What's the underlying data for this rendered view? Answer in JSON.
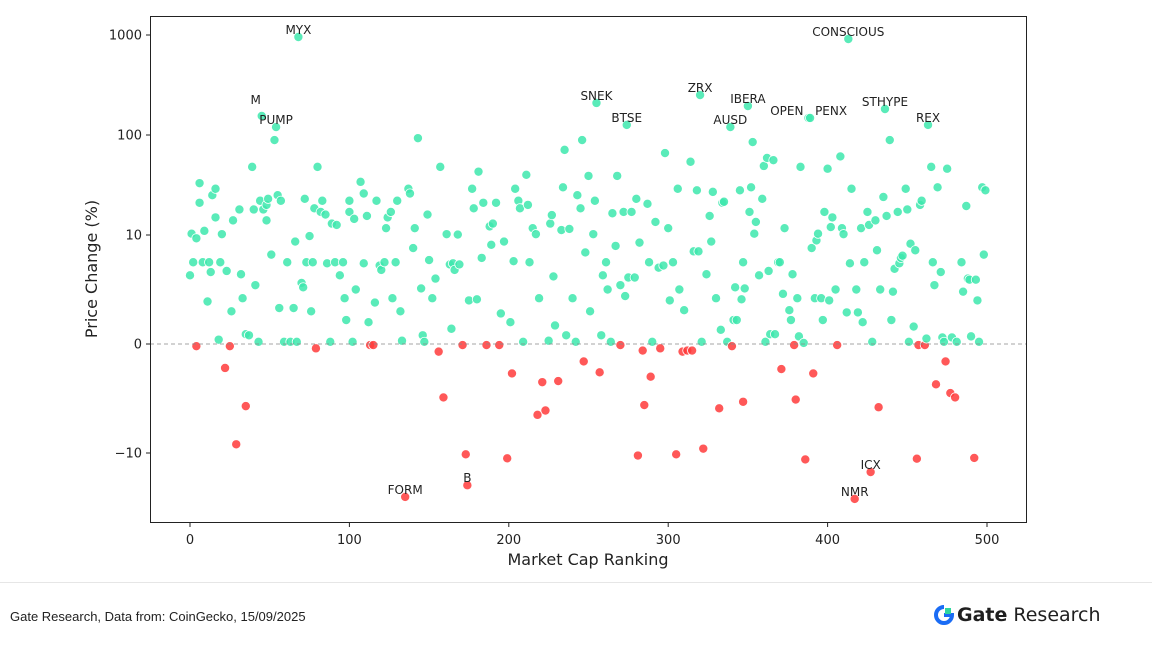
{
  "chart_data": {
    "type": "scatter",
    "title": "",
    "xlabel": "Market Cap Ranking",
    "ylabel": "Price Change (%)",
    "xlim": [
      -25,
      524
    ],
    "ylim": [
      -30,
      1500
    ],
    "yscale": "symlog",
    "linthresh": 10,
    "grid": false,
    "xticks": [
      0,
      100,
      200,
      300,
      400,
      500
    ],
    "xtick_labels": [
      "0",
      "100",
      "200",
      "300",
      "400",
      "500"
    ],
    "yticks": [
      -10,
      0,
      10,
      100,
      1000
    ],
    "ytick_labels": [
      "−10",
      "0",
      "10",
      "100",
      "1000"
    ],
    "colors": {
      "positive": "#3de8ad",
      "negative": "#ff3b3b",
      "zero_line": "#888888"
    },
    "labeled_points": [
      {
        "name": "MYX",
        "rank": 68,
        "value": 955
      },
      {
        "name": "M",
        "rank": 45,
        "value": 155
      },
      {
        "name": "PUMP",
        "rank": 54,
        "value": 120
      },
      {
        "name": "SNEK",
        "rank": 255,
        "value": 209
      },
      {
        "name": "BTSE",
        "rank": 274,
        "value": 126
      },
      {
        "name": "ZRX",
        "rank": 320,
        "value": 251
      },
      {
        "name": "IBERA",
        "rank": 350,
        "value": 195
      },
      {
        "name": "AUSD",
        "rank": 339,
        "value": 120
      },
      {
        "name": "OPEN",
        "rank": 388,
        "value": 148
      },
      {
        "name": "PENX",
        "rank": 389,
        "value": 148
      },
      {
        "name": "CONSCIOUS",
        "rank": 413,
        "value": 912
      },
      {
        "name": "STHYPE",
        "rank": 436,
        "value": 182
      },
      {
        "name": "REX",
        "rank": 463,
        "value": 126
      },
      {
        "name": "FORM",
        "rank": 135,
        "value": -27.5
      },
      {
        "name": "B",
        "rank": 174,
        "value": -21
      },
      {
        "name": "ICX",
        "rank": 427,
        "value": -15.5
      },
      {
        "name": "NMR",
        "rank": 417,
        "value": -28.8
      }
    ],
    "points": [
      [
        0,
        6.3
      ],
      [
        1,
        10.3
      ],
      [
        2,
        7.5
      ],
      [
        4,
        9.7
      ],
      [
        4,
        -0.2
      ],
      [
        6,
        21
      ],
      [
        6,
        33
      ],
      [
        8,
        7.5
      ],
      [
        9,
        11
      ],
      [
        11,
        3.9
      ],
      [
        12,
        7.5
      ],
      [
        13,
        6.6
      ],
      [
        14,
        25
      ],
      [
        16,
        29
      ],
      [
        16,
        15
      ],
      [
        18,
        0.4
      ],
      [
        19,
        7.5
      ],
      [
        20,
        10.2
      ],
      [
        22,
        -2.2
      ],
      [
        23,
        6.7
      ],
      [
        25,
        -0.2
      ],
      [
        26,
        3
      ],
      [
        27,
        14
      ],
      [
        29,
        -9.2
      ],
      [
        31,
        18
      ],
      [
        32,
        6.4
      ],
      [
        33,
        4.2
      ],
      [
        35,
        -5.7
      ],
      [
        35,
        0.9
      ],
      [
        37,
        0.8
      ],
      [
        39,
        48
      ],
      [
        40,
        18
      ],
      [
        41,
        5.4
      ],
      [
        43,
        0.2
      ],
      [
        44,
        22
      ],
      [
        46,
        18
      ],
      [
        48,
        20
      ],
      [
        48,
        14
      ],
      [
        49,
        23
      ],
      [
        51,
        8.2
      ],
      [
        53,
        89
      ],
      [
        55,
        25
      ],
      [
        56,
        3.3
      ],
      [
        57,
        22
      ],
      [
        59,
        0.2
      ],
      [
        61,
        7.5
      ],
      [
        63,
        0.2
      ],
      [
        65,
        3.3
      ],
      [
        66,
        9.4
      ],
      [
        67,
        0.2
      ],
      [
        70,
        5.6
      ],
      [
        71,
        5.2
      ],
      [
        72,
        23
      ],
      [
        73,
        7.5
      ],
      [
        75,
        9.9
      ],
      [
        76,
        3
      ],
      [
        77,
        7.5
      ],
      [
        78,
        18.5
      ],
      [
        79,
        -0.4
      ],
      [
        80,
        48
      ],
      [
        82,
        17
      ],
      [
        83,
        22
      ],
      [
        85,
        16
      ],
      [
        86,
        7.4
      ],
      [
        88,
        0.2
      ],
      [
        89,
        13
      ],
      [
        91,
        7.5
      ],
      [
        92,
        12.6
      ],
      [
        94,
        6.3
      ],
      [
        96,
        7.5
      ],
      [
        97,
        4.2
      ],
      [
        98,
        2.2
      ],
      [
        100,
        22
      ],
      [
        100,
        17
      ],
      [
        102,
        0.2
      ],
      [
        103,
        14.5
      ],
      [
        104,
        5
      ],
      [
        107,
        34
      ],
      [
        109,
        26
      ],
      [
        109,
        7.4
      ],
      [
        111,
        15.5
      ],
      [
        112,
        2
      ],
      [
        113,
        -0.1
      ],
      [
        115,
        -0.1
      ],
      [
        116,
        3.8
      ],
      [
        117,
        22
      ],
      [
        119,
        7.2
      ],
      [
        120,
        6.8
      ],
      [
        122,
        7.5
      ],
      [
        123,
        11.7
      ],
      [
        124,
        15
      ],
      [
        126,
        17
      ],
      [
        127,
        4.2
      ],
      [
        129,
        7.5
      ],
      [
        130,
        22
      ],
      [
        132,
        3
      ],
      [
        133,
        0.3
      ],
      [
        137,
        29
      ],
      [
        138,
        26
      ],
      [
        140,
        8.8
      ],
      [
        141,
        11.7
      ],
      [
        143,
        93
      ],
      [
        145,
        5.1
      ],
      [
        146,
        0.8
      ],
      [
        147,
        0.2
      ],
      [
        149,
        16
      ],
      [
        150,
        7.7
      ],
      [
        152,
        4.2
      ],
      [
        154,
        6
      ],
      [
        156,
        -0.7
      ],
      [
        157,
        48
      ],
      [
        159,
        -4.9
      ],
      [
        161,
        10.2
      ],
      [
        163,
        7.3
      ],
      [
        164,
        1.4
      ],
      [
        165,
        7.4
      ],
      [
        166,
        6.8
      ],
      [
        168,
        10.1
      ],
      [
        169,
        7.3
      ],
      [
        171,
        -0.1
      ],
      [
        173,
        -10.3
      ],
      [
        175,
        4
      ],
      [
        177,
        29
      ],
      [
        178,
        18.5
      ],
      [
        180,
        4.1
      ],
      [
        181,
        43
      ],
      [
        183,
        7.9
      ],
      [
        184,
        21
      ],
      [
        186,
        -0.1
      ],
      [
        188,
        12.2
      ],
      [
        189,
        9.1
      ],
      [
        190,
        13
      ],
      [
        192,
        21
      ],
      [
        194,
        -0.1
      ],
      [
        195,
        2.8
      ],
      [
        197,
        9.4
      ],
      [
        199,
        -11.3
      ],
      [
        201,
        2
      ],
      [
        202,
        -2.7
      ],
      [
        203,
        7.6
      ],
      [
        204,
        29
      ],
      [
        206,
        22
      ],
      [
        207,
        18.5
      ],
      [
        209,
        0.2
      ],
      [
        211,
        40
      ],
      [
        212,
        20
      ],
      [
        213,
        7.5
      ],
      [
        215,
        11.7
      ],
      [
        217,
        10.2
      ],
      [
        218,
        -6.5
      ],
      [
        219,
        4.2
      ],
      [
        221,
        -3.5
      ],
      [
        223,
        -6.1
      ],
      [
        225,
        0.3
      ],
      [
        226,
        13
      ],
      [
        227,
        15.8
      ],
      [
        228,
        6.2
      ],
      [
        229,
        1.7
      ],
      [
        231,
        -3.4
      ],
      [
        233,
        11.2
      ],
      [
        234,
        30
      ],
      [
        235,
        71
      ],
      [
        236,
        0.8
      ],
      [
        238,
        11.5
      ],
      [
        240,
        4.2
      ],
      [
        242,
        0.2
      ],
      [
        243,
        25
      ],
      [
        245,
        18.5
      ],
      [
        246,
        89
      ],
      [
        247,
        -1.6
      ],
      [
        248,
        8.4
      ],
      [
        250,
        39
      ],
      [
        251,
        3
      ],
      [
        253,
        10.2
      ],
      [
        254,
        22
      ],
      [
        257,
        -2.6
      ],
      [
        258,
        0.8
      ],
      [
        259,
        6.3
      ],
      [
        261,
        7.5
      ],
      [
        262,
        5
      ],
      [
        264,
        0.2
      ],
      [
        265,
        16.5
      ],
      [
        267,
        9
      ],
      [
        268,
        39
      ],
      [
        270,
        5.4
      ],
      [
        270,
        -0.1
      ],
      [
        272,
        17
      ],
      [
        273,
        4.4
      ],
      [
        275,
        6.1
      ],
      [
        277,
        17
      ],
      [
        279,
        6.1
      ],
      [
        280,
        23
      ],
      [
        281,
        -10.6
      ],
      [
        282,
        9.3
      ],
      [
        284,
        -0.6
      ],
      [
        285,
        -5.6
      ],
      [
        287,
        20.5
      ],
      [
        288,
        7.5
      ],
      [
        289,
        -3
      ],
      [
        290,
        0.2
      ],
      [
        292,
        13.5
      ],
      [
        294,
        7
      ],
      [
        295,
        -0.4
      ],
      [
        297,
        7.2
      ],
      [
        298,
        66
      ],
      [
        300,
        11.7
      ],
      [
        301,
        4
      ],
      [
        303,
        7.5
      ],
      [
        305,
        -10.3
      ],
      [
        306,
        29
      ],
      [
        307,
        5
      ],
      [
        309,
        -0.7
      ],
      [
        310,
        3.1
      ],
      [
        312,
        -0.6
      ],
      [
        314,
        54
      ],
      [
        315,
        -0.6
      ],
      [
        316,
        8.5
      ],
      [
        318,
        28
      ],
      [
        319,
        8.5
      ],
      [
        321,
        0.2
      ],
      [
        322,
        -9.6
      ],
      [
        324,
        6.4
      ],
      [
        326,
        15.5
      ],
      [
        327,
        9.4
      ],
      [
        328,
        27
      ],
      [
        330,
        4.2
      ],
      [
        332,
        -5.9
      ],
      [
        333,
        1.3
      ],
      [
        334,
        21
      ],
      [
        335,
        21.5
      ],
      [
        337,
        0.2
      ],
      [
        340,
        -0.2
      ],
      [
        341,
        2.2
      ],
      [
        342,
        5.2
      ],
      [
        343,
        2.2
      ],
      [
        345,
        28
      ],
      [
        346,
        4.1
      ],
      [
        347,
        7.5
      ],
      [
        347,
        -5.3
      ],
      [
        348,
        5.1
      ],
      [
        351,
        17
      ],
      [
        352,
        30
      ],
      [
        353,
        85
      ],
      [
        354,
        10.3
      ],
      [
        355,
        13.5
      ],
      [
        357,
        6.3
      ],
      [
        359,
        23
      ],
      [
        360,
        49
      ],
      [
        361,
        0.2
      ],
      [
        362,
        59
      ],
      [
        363,
        6.7
      ],
      [
        364,
        0.9
      ],
      [
        366,
        56
      ],
      [
        367,
        0.9
      ],
      [
        369,
        7.5
      ],
      [
        370,
        7.5
      ],
      [
        371,
        -2.3
      ],
      [
        372,
        4.6
      ],
      [
        373,
        11.7
      ],
      [
        376,
        3.1
      ],
      [
        377,
        2.2
      ],
      [
        378,
        6.4
      ],
      [
        379,
        -0.1
      ],
      [
        380,
        -5.1
      ],
      [
        381,
        4.2
      ],
      [
        382,
        0.7
      ],
      [
        383,
        48
      ],
      [
        385,
        0.1
      ],
      [
        386,
        -11.6
      ],
      [
        390,
        8.8
      ],
      [
        391,
        -2.7
      ],
      [
        392,
        4.2
      ],
      [
        393,
        9.5
      ],
      [
        394,
        10.3
      ],
      [
        396,
        4.2
      ],
      [
        397,
        2.2
      ],
      [
        398,
        17
      ],
      [
        400,
        46
      ],
      [
        401,
        4
      ],
      [
        402,
        12
      ],
      [
        403,
        15
      ],
      [
        405,
        5
      ],
      [
        406,
        -0.1
      ],
      [
        408,
        61
      ],
      [
        409,
        11.7
      ],
      [
        410,
        10.2
      ],
      [
        412,
        2.9
      ],
      [
        414,
        7.4
      ],
      [
        415,
        29
      ],
      [
        418,
        5
      ],
      [
        419,
        2.9
      ],
      [
        421,
        11.7
      ],
      [
        422,
        2
      ],
      [
        423,
        7.5
      ],
      [
        425,
        17
      ],
      [
        426,
        12.6
      ],
      [
        428,
        0.2
      ],
      [
        430,
        14
      ],
      [
        431,
        8.6
      ],
      [
        432,
        -5.8
      ],
      [
        433,
        5
      ],
      [
        435,
        24
      ],
      [
        437,
        15.5
      ],
      [
        439,
        89
      ],
      [
        440,
        2.2
      ],
      [
        441,
        4.8
      ],
      [
        442,
        6.9
      ],
      [
        444,
        17
      ],
      [
        445,
        7.4
      ],
      [
        446,
        7.9
      ],
      [
        447,
        8.1
      ],
      [
        449,
        29
      ],
      [
        450,
        18
      ],
      [
        451,
        0.2
      ],
      [
        452,
        9.2
      ],
      [
        454,
        1.6
      ],
      [
        455,
        8.6
      ],
      [
        456,
        -11.4
      ],
      [
        457,
        -0.1
      ],
      [
        458,
        20
      ],
      [
        459,
        22
      ],
      [
        461,
        -0.1
      ],
      [
        462,
        0.5
      ],
      [
        465,
        48
      ],
      [
        466,
        7.5
      ],
      [
        467,
        5.4
      ],
      [
        468,
        -3.7
      ],
      [
        469,
        30
      ],
      [
        471,
        6.6
      ],
      [
        472,
        0.6
      ],
      [
        473,
        0.2
      ],
      [
        474,
        -1.6
      ],
      [
        475,
        46
      ],
      [
        477,
        -4.5
      ],
      [
        478,
        0.6
      ],
      [
        480,
        -4.9
      ],
      [
        481,
        0.2
      ],
      [
        484,
        7.5
      ],
      [
        485,
        4.8
      ],
      [
        487,
        19.5
      ],
      [
        488,
        6
      ],
      [
        489,
        5.9
      ],
      [
        490,
        0.7
      ],
      [
        492,
        -11.2
      ],
      [
        493,
        5.9
      ],
      [
        494,
        4
      ],
      [
        495,
        0.2
      ],
      [
        497,
        30
      ],
      [
        498,
        8.2
      ],
      [
        499,
        28
      ]
    ]
  },
  "footer": {
    "source": "Gate Research, Data from: CoinGecko, 15/09/2025",
    "brand_gate": "Gate",
    "brand_research": "Research"
  }
}
